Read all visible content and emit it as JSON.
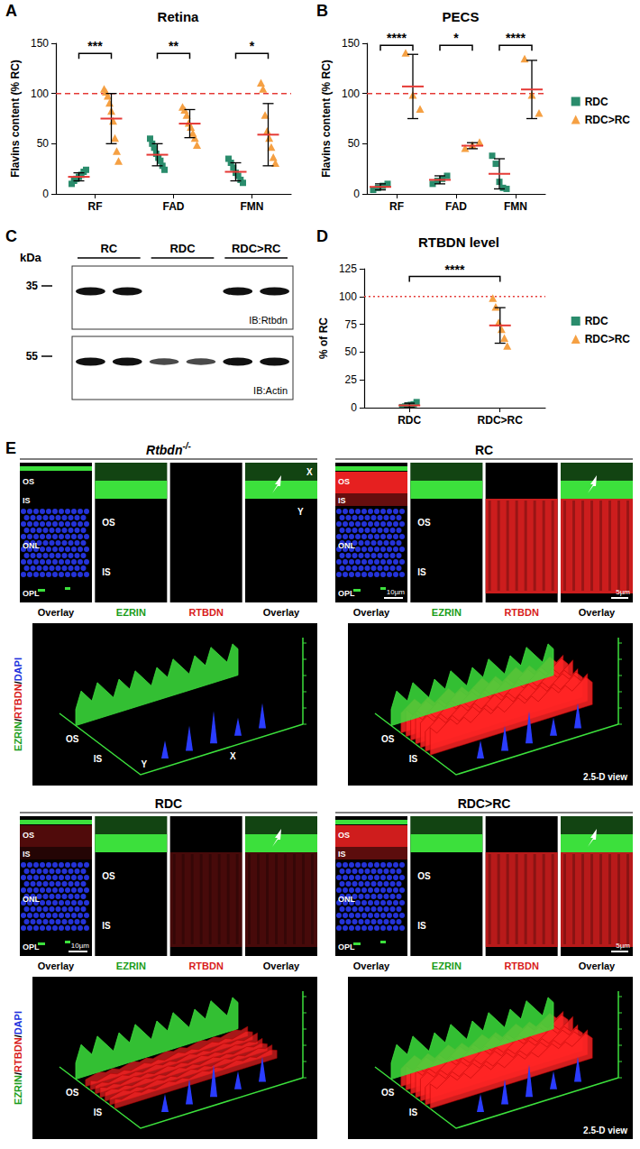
{
  "chart_data": [
    {
      "panel": "A",
      "type": "scatter",
      "title": "Retina",
      "y_label": "Flavins content (% RC)",
      "categories": [
        "RF",
        "FAD",
        "FMN"
      ],
      "ylim": [
        0,
        150
      ],
      "yticks": [
        0,
        50,
        100,
        150
      ],
      "grid": false,
      "series": [
        {
          "name": "RDC",
          "color": "#2a8c6c",
          "marker": "square",
          "values": [
            [
              10,
              13,
              15,
              17,
              19,
              22,
              24
            ],
            [
              55,
              50,
              46,
              40,
              36,
              33,
              28,
              24
            ],
            [
              35,
              31,
              26,
              21,
              18,
              14,
              11
            ]
          ],
          "means": [
            17,
            39,
            22
          ],
          "sd": [
            4,
            11,
            9
          ]
        },
        {
          "name": "RDC>RC",
          "color": "#f5a043",
          "marker": "triangle",
          "values": [
            [
              104,
              101,
              97,
              90,
              82,
              72,
              55,
              42,
              32
            ],
            [
              86,
              83,
              78,
              70,
              66,
              60,
              55,
              48
            ],
            [
              110,
              104,
              78,
              62,
              55,
              46,
              36,
              30
            ]
          ],
          "means": [
            75,
            70,
            59
          ],
          "sd": [
            25,
            14,
            31
          ]
        }
      ],
      "reference_line": {
        "value": 100,
        "color": "#e53935",
        "line_style": "dashed"
      },
      "significance": [
        {
          "category": "RF",
          "y": 140,
          "label": "***"
        },
        {
          "category": "FAD",
          "y": 140,
          "label": "**"
        },
        {
          "category": "FMN",
          "y": 140,
          "label": "*"
        }
      ]
    },
    {
      "panel": "B",
      "type": "scatter",
      "title": "PECS",
      "y_label": "Flavins content (% RC)",
      "categories": [
        "RF",
        "FAD",
        "FMN"
      ],
      "ylim": [
        0,
        150
      ],
      "yticks": [
        0,
        50,
        100,
        150
      ],
      "grid": false,
      "legend": "right",
      "series": [
        {
          "name": "RDC",
          "color": "#2a8c6c",
          "marker": "square",
          "values": [
            [
              4,
              6,
              8,
              10
            ],
            [
              10,
              13,
              15,
              18
            ],
            [
              38,
              30,
              12,
              6,
              5
            ]
          ],
          "means": [
            7,
            14,
            20
          ],
          "sd": [
            3,
            4,
            15
          ]
        },
        {
          "name": "RDC>RC",
          "color": "#f5a043",
          "marker": "triangle",
          "values": [
            [
              140,
              98,
              84
            ],
            [
              45,
              48,
              51
            ],
            [
              134,
              98,
              80
            ]
          ],
          "means": [
            107,
            48,
            104
          ],
          "sd": [
            32,
            3,
            29
          ]
        }
      ],
      "reference_line": {
        "value": 100,
        "color": "#e53935",
        "line_style": "dashed"
      },
      "significance": [
        {
          "category": "RF",
          "y": 148,
          "label": "****"
        },
        {
          "category": "FAD",
          "y": 148,
          "label": "*"
        },
        {
          "category": "FMN",
          "y": 148,
          "label": "****"
        }
      ]
    },
    {
      "panel": "D",
      "type": "scatter",
      "title": "RTBDN level",
      "y_label": "% of RC",
      "categories": [
        "RDC",
        "RDC>RC"
      ],
      "ylim": [
        0,
        125
      ],
      "yticks": [
        0,
        25,
        50,
        75,
        100,
        125
      ],
      "grid": false,
      "legend": "right",
      "series": [
        {
          "name": "RDC",
          "color": "#2a8c6c",
          "marker": "square",
          "values": [
            [
              0.5,
              1,
              2,
              2.5,
              3,
              5
            ],
            null
          ],
          "means": [
            2,
            null
          ],
          "sd": [
            2,
            null
          ]
        },
        {
          "name": "RDC>RC",
          "color": "#f5a043",
          "marker": "triangle",
          "values": [
            null,
            [
              98,
              90,
              76,
              70,
              62,
              55
            ]
          ],
          "means": [
            null,
            74
          ],
          "sd": [
            null,
            16
          ]
        }
      ],
      "reference_line": {
        "value": 100,
        "color": "#e53935",
        "line_style": "dotted"
      },
      "significance": [
        {
          "from": "RDC",
          "to": "RDC>RC",
          "y": 118,
          "label": "****"
        }
      ]
    }
  ],
  "blot": {
    "panel": "C",
    "unit_label": "kDa",
    "groups": [
      "RC",
      "RDC",
      "RDC>RC"
    ],
    "rows": [
      {
        "label": "IB:Rtbdn",
        "marker": "35",
        "bands": [
          1,
          1,
          0,
          0,
          1,
          1
        ]
      },
      {
        "label": "IB:Actin",
        "marker": "55",
        "bands": [
          1,
          1,
          0.6,
          0.6,
          1,
          1
        ]
      }
    ]
  },
  "microscopy": {
    "panel": "E",
    "columns": [
      "Overlay",
      "EZRIN",
      "RTBDN",
      "Overlay"
    ],
    "layers": [
      "OS",
      "IS",
      "ONL",
      "OPL"
    ],
    "zoom_layers": [
      "OS",
      "IS"
    ],
    "groups": [
      {
        "title": "Rtbdn-/-",
        "rtbdn_signal": 0,
        "axis_labels": [
          "X",
          "Y"
        ],
        "labels_3d": [
          "OS",
          "IS"
        ],
        "stain_label": "EZRIN/RTBDN/DAPI"
      },
      {
        "title": "RC",
        "rtbdn_signal": 1,
        "overview_scale": "10µm",
        "zoom_scale": "5µm",
        "labels_3d": [
          "OS",
          "IS"
        ],
        "view_label": "2.5-D view"
      },
      {
        "title": "RDC",
        "rtbdn_signal": 0.35,
        "overview_scale": "10µm",
        "labels_3d": [
          "OS",
          "IS"
        ],
        "stain_label": "EZRIN/RTBDN/DAPI"
      },
      {
        "title": "RDC>RC",
        "rtbdn_signal": 0.9,
        "zoom_scale": "5µm",
        "labels_3d": [
          "OS",
          "IS"
        ],
        "view_label": "2.5-D view"
      }
    ]
  }
}
